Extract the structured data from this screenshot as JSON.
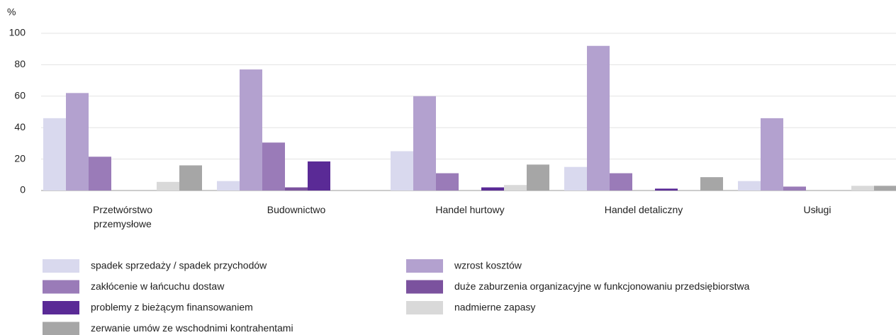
{
  "chart_data": {
    "type": "bar",
    "y_label": "%",
    "categories": [
      "Przetwórstwo przemysłowe",
      "Budownictwo",
      "Handel hurtowy",
      "Handel detaliczny",
      "Usługi"
    ],
    "series": [
      {
        "name": "spadek sprzedaży / spadek przychodów",
        "color": "#d9d9ee",
        "values": [
          46,
          6,
          25,
          15,
          6
        ]
      },
      {
        "name": "wzrost kosztów",
        "color": "#b3a1cf",
        "values": [
          62,
          77,
          60,
          92,
          46
        ]
      },
      {
        "name": "zakłócenie w łańcuchu dostaw",
        "color": "#9a7bb8",
        "values": [
          21.5,
          30.5,
          11,
          11,
          2.5
        ]
      },
      {
        "name": "duże zaburzenia organizacyjne w funkcjonowaniu przedsiębiorstwa",
        "color": "#7b529e",
        "values": [
          0,
          2,
          0,
          0,
          0
        ]
      },
      {
        "name": "problemy z bieżącym finansowaniem",
        "color": "#5a2a96",
        "values": [
          0,
          18.5,
          2,
          1.2,
          0
        ]
      },
      {
        "name": "nadmierne zapasy",
        "color": "#d9d9d9",
        "values": [
          5.5,
          0,
          3.5,
          0,
          3
        ]
      },
      {
        "name": "zerwanie umów ze wschodnimi kontrahentami",
        "color": "#a6a6a6",
        "values": [
          16,
          0,
          16.5,
          8.5,
          3
        ]
      }
    ],
    "ylim": [
      0,
      100
    ],
    "yticks": [
      0,
      20,
      40,
      60,
      80,
      100
    ],
    "grid": true
  }
}
